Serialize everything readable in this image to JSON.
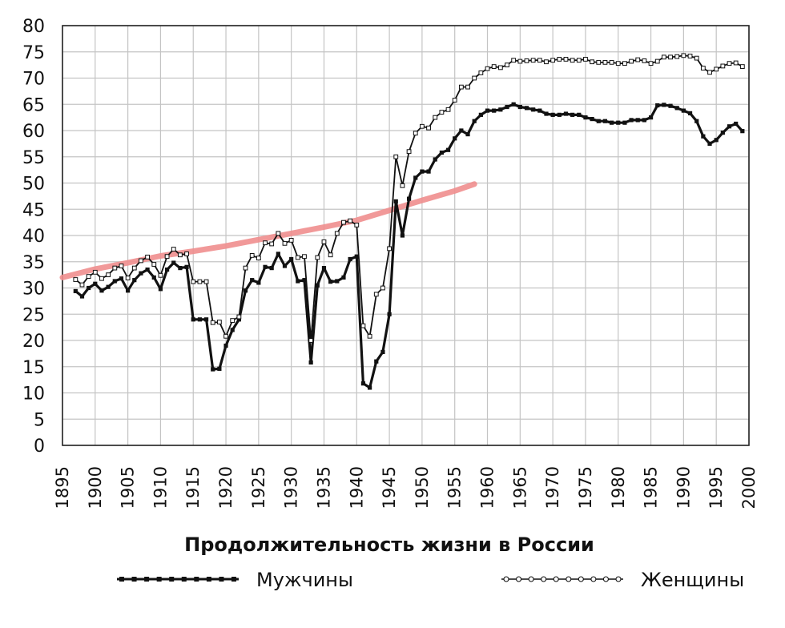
{
  "chart_data": {
    "type": "line",
    "title": "Продолжительность жизни в России",
    "xlabel": "",
    "ylabel": "",
    "xlim": [
      1895,
      2000
    ],
    "ylim": [
      0,
      80
    ],
    "x_ticks": [
      "1895",
      "1900",
      "1905",
      "1910",
      "1915",
      "1920",
      "1925",
      "1930",
      "1935",
      "1940",
      "1945",
      "1950",
      "1955",
      "1960",
      "1965",
      "1970",
      "1975",
      "1980",
      "1985",
      "1990",
      "1995",
      "2000"
    ],
    "y_ticks": [
      "0",
      "5",
      "10",
      "15",
      "20",
      "25",
      "30",
      "35",
      "40",
      "45",
      "50",
      "55",
      "60",
      "65",
      "70",
      "75",
      "80"
    ],
    "grid": true,
    "legend_position": "bottom",
    "series": [
      {
        "name": "Мужчины",
        "color": "#111111",
        "marker": "filled-square",
        "points": [
          [
            1897,
            29.4
          ],
          [
            1898,
            28.4
          ],
          [
            1899,
            30.0
          ],
          [
            1900,
            30.8
          ],
          [
            1901,
            29.5
          ],
          [
            1902,
            30.2
          ],
          [
            1903,
            31.3
          ],
          [
            1904,
            31.8
          ],
          [
            1905,
            29.5
          ],
          [
            1906,
            31.5
          ],
          [
            1907,
            32.8
          ],
          [
            1908,
            33.5
          ],
          [
            1909,
            32.0
          ],
          [
            1910,
            29.8
          ],
          [
            1911,
            33.5
          ],
          [
            1912,
            34.8
          ],
          [
            1913,
            33.8
          ],
          [
            1914,
            34.0
          ],
          [
            1915,
            24.0
          ],
          [
            1916,
            24.0
          ],
          [
            1917,
            24.0
          ],
          [
            1918,
            14.5
          ],
          [
            1919,
            14.6
          ],
          [
            1920,
            19.0
          ],
          [
            1921,
            22.0
          ],
          [
            1922,
            24.0
          ],
          [
            1923,
            29.5
          ],
          [
            1924,
            31.5
          ],
          [
            1925,
            31.0
          ],
          [
            1926,
            34.0
          ],
          [
            1927,
            33.8
          ],
          [
            1928,
            36.5
          ],
          [
            1929,
            34.2
          ],
          [
            1930,
            35.5
          ],
          [
            1931,
            31.3
          ],
          [
            1932,
            31.5
          ],
          [
            1933,
            15.8
          ],
          [
            1934,
            30.5
          ],
          [
            1935,
            33.8
          ],
          [
            1936,
            31.2
          ],
          [
            1937,
            31.3
          ],
          [
            1938,
            32.0
          ],
          [
            1939,
            35.5
          ],
          [
            1940,
            36.0
          ],
          [
            1941,
            11.8
          ],
          [
            1942,
            11.0
          ],
          [
            1943,
            16.0
          ],
          [
            1944,
            17.8
          ],
          [
            1945,
            25.0
          ],
          [
            1946,
            46.5
          ],
          [
            1947,
            40.0
          ],
          [
            1948,
            47.0
          ],
          [
            1949,
            51.0
          ],
          [
            1950,
            52.2
          ],
          [
            1951,
            52.2
          ],
          [
            1952,
            54.5
          ],
          [
            1953,
            55.8
          ],
          [
            1954,
            56.3
          ],
          [
            1955,
            58.5
          ],
          [
            1956,
            60.0
          ],
          [
            1957,
            59.3
          ],
          [
            1958,
            61.8
          ],
          [
            1959,
            63.0
          ],
          [
            1960,
            63.8
          ],
          [
            1961,
            63.8
          ],
          [
            1962,
            64.0
          ],
          [
            1963,
            64.5
          ],
          [
            1964,
            65.0
          ],
          [
            1965,
            64.5
          ],
          [
            1966,
            64.3
          ],
          [
            1967,
            64.0
          ],
          [
            1968,
            63.8
          ],
          [
            1969,
            63.2
          ],
          [
            1970,
            63.0
          ],
          [
            1971,
            63.0
          ],
          [
            1972,
            63.2
          ],
          [
            1973,
            63.0
          ],
          [
            1974,
            63.0
          ],
          [
            1975,
            62.5
          ],
          [
            1976,
            62.2
          ],
          [
            1977,
            61.8
          ],
          [
            1978,
            61.8
          ],
          [
            1979,
            61.5
          ],
          [
            1980,
            61.5
          ],
          [
            1981,
            61.5
          ],
          [
            1982,
            62.0
          ],
          [
            1983,
            62.0
          ],
          [
            1984,
            62.0
          ],
          [
            1985,
            62.5
          ],
          [
            1986,
            64.8
          ],
          [
            1987,
            64.9
          ],
          [
            1988,
            64.7
          ],
          [
            1989,
            64.3
          ],
          [
            1990,
            63.8
          ],
          [
            1991,
            63.3
          ],
          [
            1992,
            61.8
          ],
          [
            1993,
            58.9
          ],
          [
            1994,
            57.5
          ],
          [
            1995,
            58.2
          ],
          [
            1996,
            59.6
          ],
          [
            1997,
            60.8
          ],
          [
            1998,
            61.3
          ],
          [
            1999,
            59.9
          ]
        ]
      },
      {
        "name": "Женщины",
        "color": "#111111",
        "marker": "open-circle",
        "points": [
          [
            1897,
            31.6
          ],
          [
            1898,
            30.6
          ],
          [
            1899,
            32.2
          ],
          [
            1900,
            33.0
          ],
          [
            1901,
            31.8
          ],
          [
            1902,
            32.5
          ],
          [
            1903,
            33.8
          ],
          [
            1904,
            34.2
          ],
          [
            1905,
            31.9
          ],
          [
            1906,
            33.8
          ],
          [
            1907,
            35.2
          ],
          [
            1908,
            35.9
          ],
          [
            1909,
            34.5
          ],
          [
            1910,
            32.4
          ],
          [
            1911,
            36.0
          ],
          [
            1912,
            37.4
          ],
          [
            1913,
            36.3
          ],
          [
            1914,
            36.5
          ],
          [
            1915,
            31.2
          ],
          [
            1916,
            31.2
          ],
          [
            1917,
            31.2
          ],
          [
            1918,
            23.4
          ],
          [
            1919,
            23.5
          ],
          [
            1920,
            20.8
          ],
          [
            1921,
            23.8
          ],
          [
            1922,
            24.5
          ],
          [
            1923,
            33.8
          ],
          [
            1924,
            36.2
          ],
          [
            1925,
            35.7
          ],
          [
            1926,
            38.6
          ],
          [
            1927,
            38.4
          ],
          [
            1928,
            40.4
          ],
          [
            1929,
            38.5
          ],
          [
            1930,
            39.1
          ],
          [
            1931,
            35.8
          ],
          [
            1932,
            36.0
          ],
          [
            1933,
            20.0
          ],
          [
            1934,
            35.8
          ],
          [
            1935,
            38.8
          ],
          [
            1936,
            36.3
          ],
          [
            1937,
            40.4
          ],
          [
            1938,
            42.5
          ],
          [
            1939,
            42.8
          ],
          [
            1940,
            42.0
          ],
          [
            1941,
            22.8
          ],
          [
            1942,
            20.8
          ],
          [
            1943,
            28.8
          ],
          [
            1944,
            30.0
          ],
          [
            1945,
            37.5
          ],
          [
            1946,
            55.0
          ],
          [
            1947,
            49.5
          ],
          [
            1948,
            56.0
          ],
          [
            1949,
            59.5
          ],
          [
            1950,
            60.8
          ],
          [
            1951,
            60.5
          ],
          [
            1952,
            62.5
          ],
          [
            1953,
            63.5
          ],
          [
            1954,
            64.0
          ],
          [
            1955,
            65.8
          ],
          [
            1956,
            68.3
          ],
          [
            1957,
            68.3
          ],
          [
            1958,
            70.0
          ],
          [
            1959,
            71.0
          ],
          [
            1960,
            71.8
          ],
          [
            1961,
            72.2
          ],
          [
            1962,
            72.0
          ],
          [
            1963,
            72.5
          ],
          [
            1964,
            73.4
          ],
          [
            1965,
            73.2
          ],
          [
            1966,
            73.3
          ],
          [
            1967,
            73.4
          ],
          [
            1968,
            73.4
          ],
          [
            1969,
            73.1
          ],
          [
            1970,
            73.4
          ],
          [
            1971,
            73.6
          ],
          [
            1972,
            73.6
          ],
          [
            1973,
            73.4
          ],
          [
            1974,
            73.4
          ],
          [
            1975,
            73.6
          ],
          [
            1976,
            73.1
          ],
          [
            1977,
            73.0
          ],
          [
            1978,
            73.0
          ],
          [
            1979,
            73.0
          ],
          [
            1980,
            72.8
          ],
          [
            1981,
            72.8
          ],
          [
            1982,
            73.2
          ],
          [
            1983,
            73.5
          ],
          [
            1984,
            73.3
          ],
          [
            1985,
            72.8
          ],
          [
            1986,
            73.2
          ],
          [
            1987,
            74.0
          ],
          [
            1988,
            74.0
          ],
          [
            1989,
            74.1
          ],
          [
            1990,
            74.3
          ],
          [
            1991,
            74.2
          ],
          [
            1992,
            73.8
          ],
          [
            1993,
            71.9
          ],
          [
            1994,
            71.1
          ],
          [
            1995,
            71.7
          ],
          [
            1996,
            72.3
          ],
          [
            1997,
            72.8
          ],
          [
            1998,
            72.9
          ],
          [
            1999,
            72.2
          ]
        ]
      },
      {
        "name": "",
        "color": "#f08e8e",
        "marker": "none",
        "points": [
          [
            1895,
            32.0
          ],
          [
            1900,
            33.6
          ],
          [
            1905,
            34.8
          ],
          [
            1910,
            36.1
          ],
          [
            1915,
            37.0
          ],
          [
            1920,
            38.0
          ],
          [
            1925,
            39.2
          ],
          [
            1930,
            40.4
          ],
          [
            1935,
            41.6
          ],
          [
            1940,
            42.9
          ],
          [
            1945,
            44.8
          ],
          [
            1950,
            46.7
          ],
          [
            1955,
            48.5
          ],
          [
            1958,
            49.8
          ]
        ]
      }
    ]
  }
}
